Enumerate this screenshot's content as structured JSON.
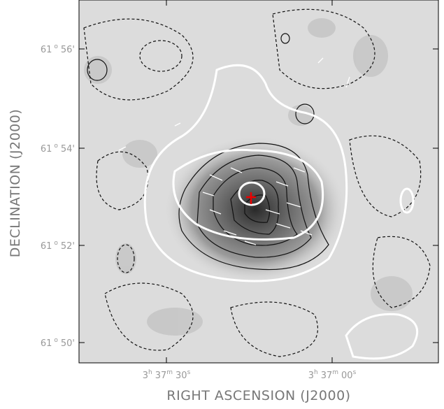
{
  "x_axis": {
    "title": "RIGHT ASCENSION (J2000)",
    "ticks": [
      [
        "3",
        "h",
        "37",
        "m",
        "30",
        "s"
      ],
      [
        "3",
        "h",
        "37",
        "m",
        "00",
        "s"
      ]
    ]
  },
  "y_axis": {
    "title": "DECLINATION (J2000)",
    "ticks": [
      [
        "61",
        "o",
        "56'"
      ],
      [
        "61",
        "o",
        "54'"
      ],
      [
        "61",
        "o",
        "52'"
      ],
      [
        "61",
        "o",
        "50'"
      ]
    ]
  }
}
